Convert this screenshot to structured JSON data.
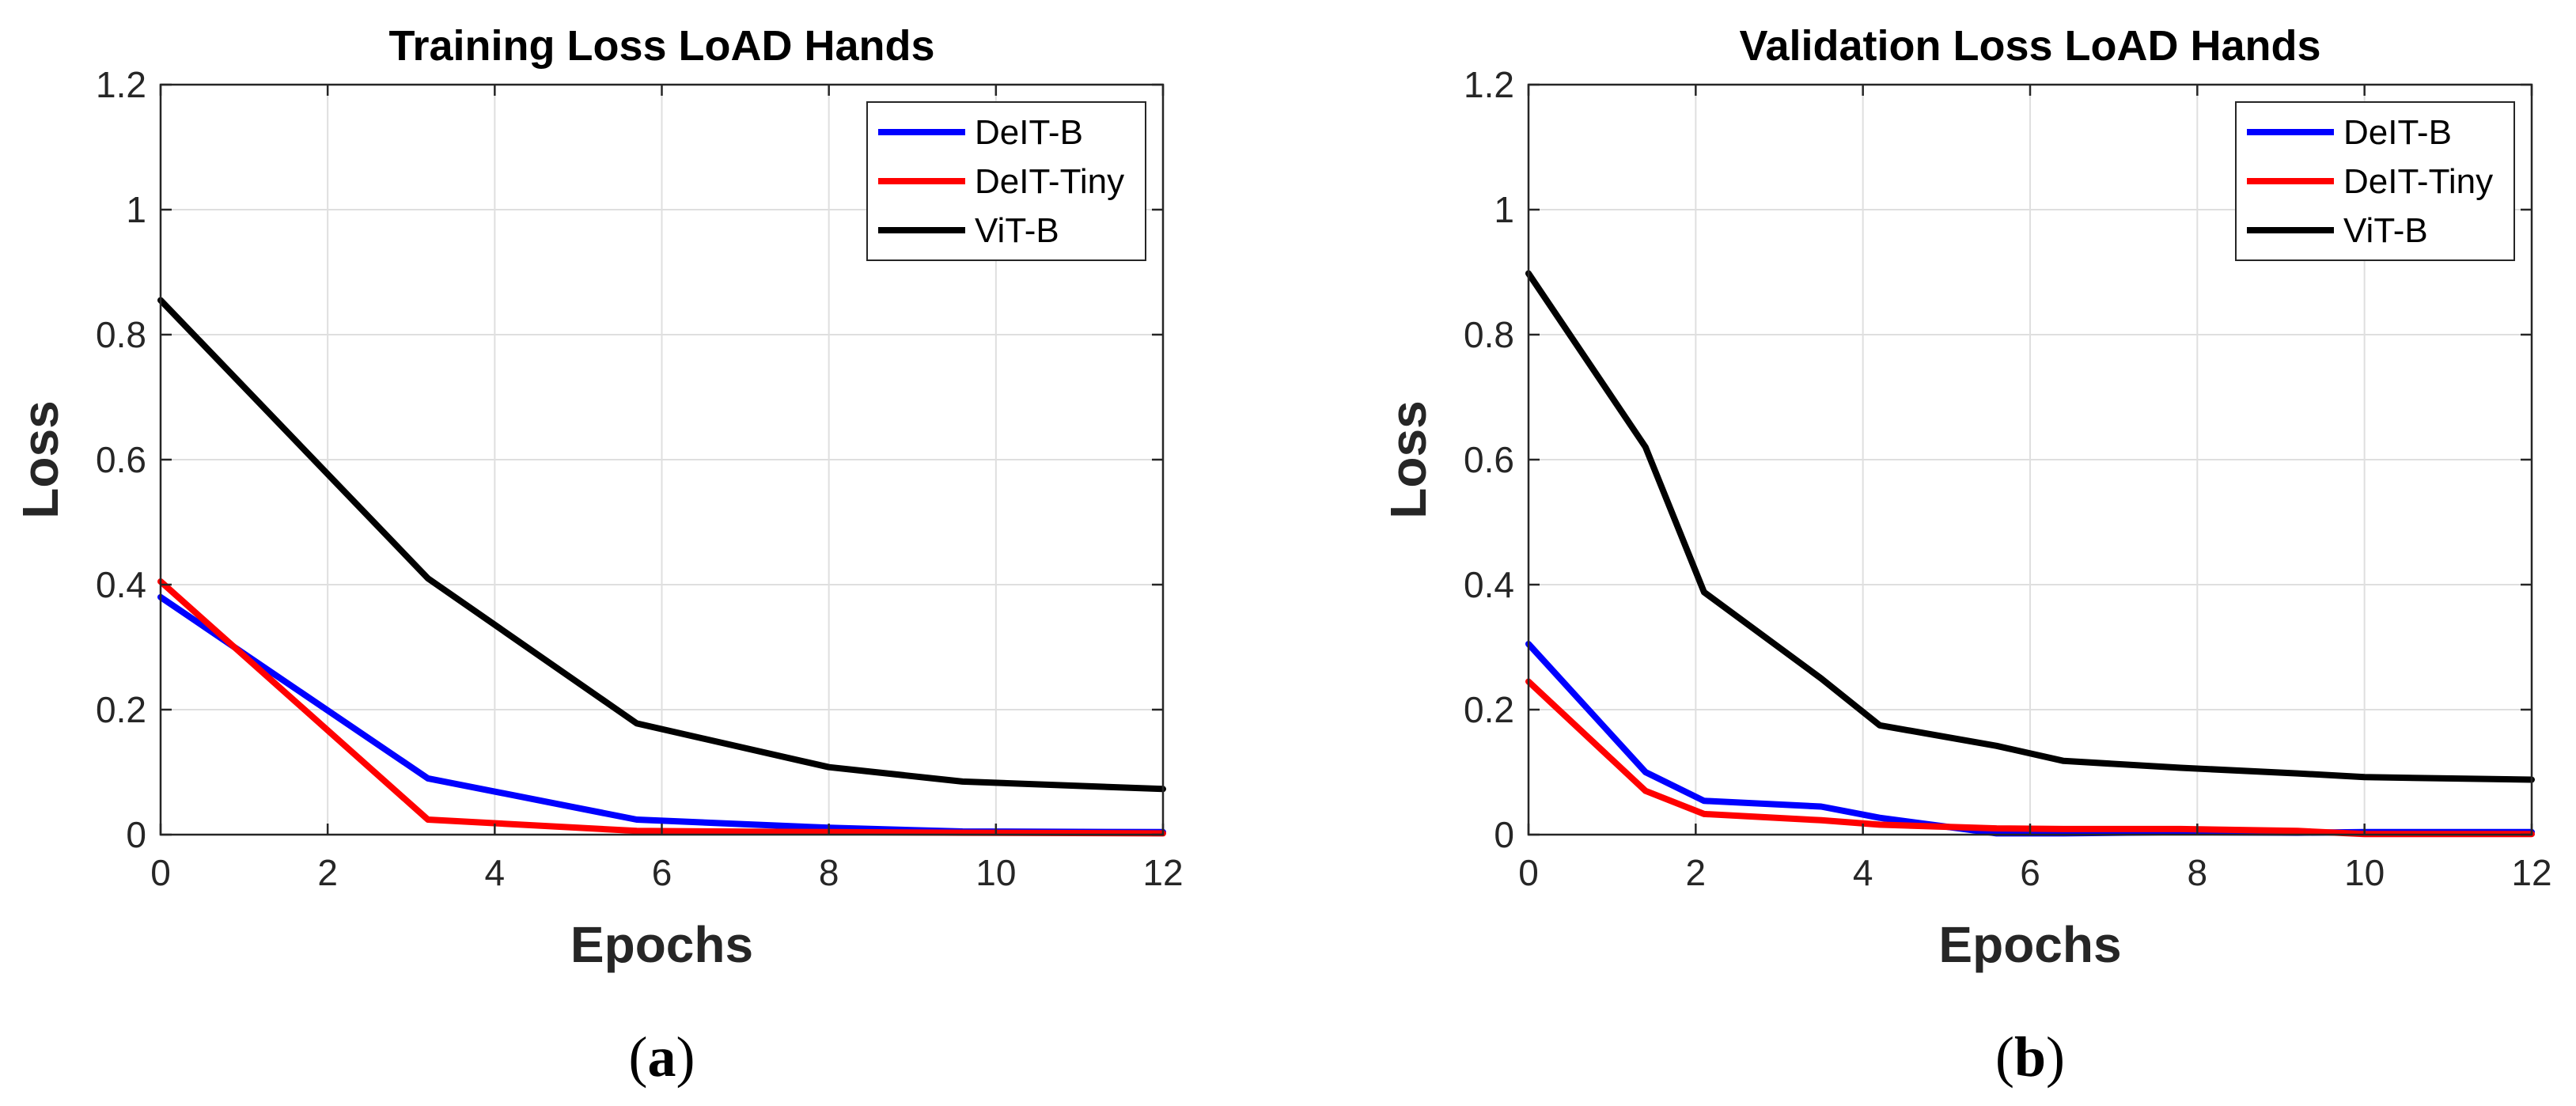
{
  "chart_data": [
    {
      "type": "line",
      "panel": "a",
      "title": "Training Loss LoAD Hands",
      "xlabel": "Epochs",
      "ylabel": "Loss",
      "caption": "a",
      "xlim": [
        0,
        12
      ],
      "ylim": [
        0,
        1.2
      ],
      "xticks": [
        "0",
        "2",
        "4",
        "6",
        "8",
        "10",
        "12"
      ],
      "yticks": [
        "0",
        "0.2",
        "0.4",
        "0.6",
        "0.8",
        "1",
        "1.2"
      ],
      "grid": true,
      "legend_position": "top-right",
      "series": [
        {
          "name": "DeIT-B",
          "color": "#0000ff",
          "x": [
            0,
            3.2,
            5.7,
            8,
            9.6,
            12
          ],
          "y": [
            0.38,
            0.09,
            0.024,
            0.011,
            0.005,
            0.004
          ]
        },
        {
          "name": "DeIT-Tiny",
          "color": "#ff0000",
          "x": [
            0,
            3.2,
            5.7,
            8,
            9.6,
            12
          ],
          "y": [
            0.405,
            0.024,
            0.006,
            0.004,
            0.003,
            0.002
          ]
        },
        {
          "name": "ViT-B",
          "color": "#000000",
          "x": [
            0,
            3.2,
            5.7,
            8,
            9.6,
            12
          ],
          "y": [
            0.855,
            0.41,
            0.178,
            0.108,
            0.085,
            0.073
          ]
        }
      ]
    },
    {
      "type": "line",
      "panel": "b",
      "title": "Validation Loss LoAD Hands",
      "xlabel": "Epochs",
      "ylabel": "Loss",
      "caption": "b",
      "xlim": [
        0,
        12
      ],
      "ylim": [
        0,
        1.2
      ],
      "xticks": [
        "0",
        "2",
        "4",
        "6",
        "8",
        "10",
        "12"
      ],
      "yticks": [
        "0",
        "0.2",
        "0.4",
        "0.6",
        "0.8",
        "1",
        "1.2"
      ],
      "grid": true,
      "legend_position": "top-right",
      "series": [
        {
          "name": "DeIT-B",
          "color": "#0000ff",
          "x": [
            0,
            1.4,
            2.1,
            3.5,
            4.2,
            5.6,
            6.4,
            7.8,
            9.2,
            10,
            12
          ],
          "y": [
            0.305,
            0.1,
            0.054,
            0.045,
            0.027,
            0.002,
            0.002,
            0.004,
            0.003,
            0.004,
            0.004
          ]
        },
        {
          "name": "DeIT-Tiny",
          "color": "#ff0000",
          "x": [
            0,
            1.4,
            2.1,
            3.5,
            4.2,
            5.6,
            6.4,
            7.8,
            9.2,
            10,
            12
          ],
          "y": [
            0.245,
            0.07,
            0.033,
            0.023,
            0.016,
            0.01,
            0.009,
            0.009,
            0.006,
            0.001,
            0.001
          ]
        },
        {
          "name": "ViT-B",
          "color": "#000000",
          "x": [
            0,
            1.4,
            2.1,
            3.5,
            4.2,
            5.6,
            6.4,
            7.8,
            9.2,
            10,
            12
          ],
          "y": [
            0.898,
            0.62,
            0.388,
            0.25,
            0.175,
            0.142,
            0.118,
            0.107,
            0.098,
            0.092,
            0.088
          ]
        }
      ]
    }
  ]
}
